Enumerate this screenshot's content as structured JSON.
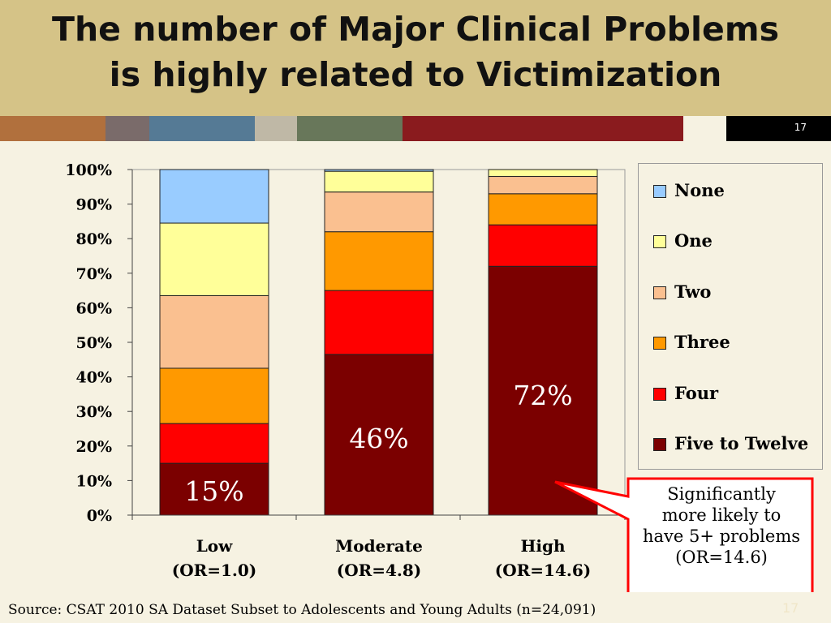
{
  "slide": {
    "title_line1": "The number of Major Clinical Problems",
    "title_line2": "is highly related to Victimization",
    "slide_number": "17",
    "stripe_colors": [
      "#b1703d",
      "#7a6b6a",
      "#557a95",
      "#bfb8a6",
      "#68775a",
      "#8a1b1e"
    ],
    "background": "#f6f2e2",
    "title_band_color": "#d5c387"
  },
  "chart_data": {
    "type": "bar",
    "stacked": true,
    "title": "",
    "xlabel": "",
    "ylabel": "",
    "ylim": [
      0,
      100
    ],
    "yticks": [
      "0%",
      "10%",
      "20%",
      "30%",
      "40%",
      "50%",
      "60%",
      "70%",
      "80%",
      "90%",
      "100%"
    ],
    "categories": [
      {
        "line1": "Low",
        "line2": "(OR=1.0)"
      },
      {
        "line1": "Moderate",
        "line2": "(OR=4.8)"
      },
      {
        "line1": "High",
        "line2": "(OR=14.6)"
      }
    ],
    "series": [
      {
        "name": "Five to Twelve",
        "color": "#7b0000",
        "values": [
          15,
          46.5,
          72
        ]
      },
      {
        "name": "Four",
        "color": "#ff0000",
        "values": [
          11.5,
          18.5,
          12
        ]
      },
      {
        "name": "Three",
        "color": "#ff9900",
        "values": [
          16,
          17,
          9
        ]
      },
      {
        "name": "Two",
        "color": "#fac090",
        "values": [
          21,
          11.5,
          5
        ]
      },
      {
        "name": "One",
        "color": "#ffff99",
        "values": [
          21,
          6,
          2
        ]
      },
      {
        "name": "None",
        "color": "#99ccff",
        "values": [
          15.5,
          0.5,
          0
        ]
      }
    ],
    "data_labels": [
      "15%",
      "46%",
      "72%"
    ],
    "legend_position": "right",
    "grid": false
  },
  "callout": {
    "line1": "Significantly",
    "line2": "more likely to",
    "line3": "have 5+ problems",
    "line4": "(OR=14.6)",
    "border_color": "#ff0000"
  },
  "source_text": "Source: CSAT 2010 SA Dataset Subset to Adolescents and Young Adults (n=24,091)"
}
